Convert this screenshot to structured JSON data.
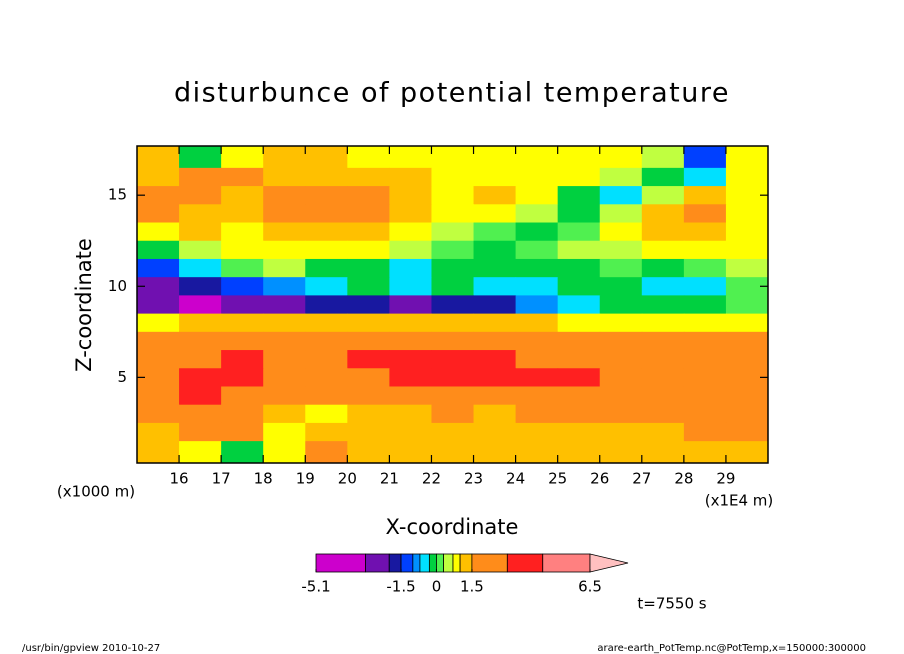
{
  "chart_data": {
    "type": "contour",
    "title": "disturbunce of potential temperature",
    "x_label": "X-coordinate",
    "y_label": "Z-coordinate",
    "x_multiplier": "(x1E4 m)",
    "y_multiplier": "(x1000 m)",
    "time_label": "t=7550 s",
    "footer_left": "/usr/bin/gpview   2010-10-27",
    "footer_right": "arare-earth_PotTemp.nc@PotTemp,x=150000:300000",
    "xlim": [
      15,
      30
    ],
    "ylim": [
      0.3,
      17.7
    ],
    "xticks": [
      16,
      17,
      18,
      19,
      20,
      21,
      22,
      23,
      24,
      25,
      26,
      27,
      28,
      29
    ],
    "yticks": [
      5,
      10,
      15
    ],
    "x": [
      15.5,
      16.5,
      17.5,
      18.5,
      19.5,
      20.5,
      21.5,
      22.5,
      23.5,
      24.5,
      25.5,
      26.5,
      27.5,
      28.5,
      29.5
    ],
    "y": [
      17,
      16,
      15,
      14,
      13,
      12,
      11,
      10,
      9,
      8,
      7,
      6,
      5,
      4,
      3,
      2,
      1
    ],
    "z": [
      [
        1.2,
        -0.2,
        0.8,
        1.2,
        1.2,
        0.8,
        0.8,
        0.8,
        0.8,
        0.8,
        0.8,
        0.8,
        0.5,
        -1.2,
        0.8
      ],
      [
        1.2,
        1.8,
        1.8,
        1.3,
        1.3,
        1.3,
        1.2,
        0.9,
        0.9,
        0.9,
        0.8,
        0.5,
        -0.1,
        -0.5,
        0.8
      ],
      [
        1.6,
        1.7,
        1.3,
        1.6,
        1.8,
        1.7,
        1.3,
        0.9,
        1.1,
        0.9,
        -0.1,
        -0.5,
        0.5,
        1.2,
        0.9
      ],
      [
        1.7,
        1.3,
        1.3,
        1.7,
        1.8,
        1.7,
        1.2,
        0.9,
        0.8,
        0.5,
        -0.1,
        0.4,
        1.2,
        1.6,
        0.9
      ],
      [
        0.9,
        1.2,
        0.9,
        1.2,
        1.3,
        1.2,
        0.9,
        0.5,
        0.2,
        -0.1,
        0.2,
        0.8,
        1.2,
        1.3,
        0.9
      ],
      [
        -0.2,
        0.5,
        0.8,
        0.8,
        0.9,
        0.8,
        0.5,
        0.2,
        -0.1,
        0.2,
        0.5,
        0.5,
        0.8,
        0.8,
        0.8
      ],
      [
        -1.2,
        -0.5,
        0.2,
        0.4,
        -0.1,
        -0.1,
        -0.4,
        -0.2,
        -0.1,
        -0.1,
        -0.1,
        0.2,
        -0.1,
        0.1,
        0.4
      ],
      [
        -2.5,
        -1.8,
        -1.3,
        -0.9,
        -0.5,
        -0.2,
        -0.5,
        -0.2,
        -0.4,
        -0.5,
        -0.2,
        -0.1,
        -0.5,
        -0.5,
        0.2
      ],
      [
        -2.5,
        -3.3,
        -2.8,
        -2.2,
        -1.8,
        -1.8,
        -2.1,
        -1.9,
        -1.7,
        -0.9,
        -0.5,
        -0.2,
        -0.1,
        -0.2,
        0.2
      ],
      [
        0.8,
        1.2,
        1.2,
        1.1,
        1.1,
        1.2,
        1.2,
        1.2,
        1.2,
        1.1,
        0.9,
        0.9,
        0.9,
        0.9,
        0.9
      ],
      [
        2.0,
        2.0,
        2.0,
        2.0,
        2.0,
        2.0,
        2.0,
        2.0,
        2.0,
        2.0,
        2.0,
        2.0,
        2.0,
        2.0,
        1.8
      ],
      [
        2.2,
        2.5,
        3.2,
        2.5,
        2.6,
        3.2,
        3.5,
        3.5,
        3.3,
        2.7,
        2.6,
        2.4,
        2.2,
        2.2,
        2.0
      ],
      [
        2.3,
        3.2,
        3.3,
        2.6,
        2.5,
        2.8,
        3.2,
        3.3,
        3.4,
        3.3,
        3.1,
        2.6,
        2.3,
        2.2,
        2.0
      ],
      [
        2.2,
        3.1,
        2.6,
        2.2,
        2.1,
        2.0,
        2.0,
        2.0,
        2.0,
        2.0,
        2.0,
        2.0,
        2.0,
        2.0,
        1.9
      ],
      [
        1.8,
        2.0,
        2.0,
        1.2,
        0.8,
        1.3,
        1.4,
        1.6,
        1.3,
        1.7,
        1.8,
        1.8,
        1.8,
        1.8,
        1.7
      ],
      [
        1.3,
        1.6,
        1.6,
        0.9,
        1.2,
        1.1,
        1.3,
        1.3,
        1.4,
        1.2,
        1.3,
        1.4,
        1.4,
        1.6,
        1.6
      ],
      [
        1.1,
        0.8,
        -0.1,
        0.9,
        1.6,
        1.3,
        1.4,
        1.3,
        1.3,
        1.3,
        1.3,
        1.3,
        1.3,
        1.3,
        1.3
      ]
    ],
    "levels": [
      -5.1,
      -3,
      -2,
      -1.5,
      -1,
      -0.7,
      -0.3,
      0,
      0.3,
      0.7,
      1,
      1.5,
      3,
      4.5,
      6.5
    ],
    "colors": [
      "#cc00cc",
      "#7010b0",
      "#1818a0",
      "#0040ff",
      "#0090ff",
      "#00e0ff",
      "#00d040",
      "#50f050",
      "#c0ff40",
      "#ffff00",
      "#ffc000",
      "#ff8c1a",
      "#ff2020",
      "#ff8080"
    ],
    "over_color": "#ffc0c0",
    "colorbar_ticks": [
      -5.1,
      -1.5,
      0,
      1.5,
      6.5
    ]
  }
}
